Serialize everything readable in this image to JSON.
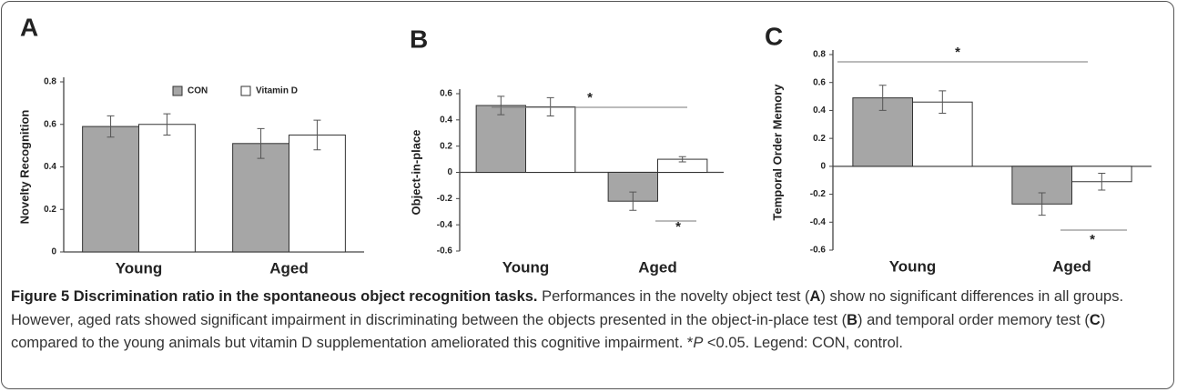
{
  "chart_data": [
    {
      "type": "bar",
      "panel": "A",
      "ylabel": "Novelty Recognition",
      "categories": [
        "Young",
        "Aged"
      ],
      "series": [
        {
          "name": "CON",
          "color": "#a6a6a6",
          "values": [
            0.59,
            0.51
          ],
          "errors": [
            0.05,
            0.07
          ]
        },
        {
          "name": "Vitamin D",
          "color": "#ffffff",
          "values": [
            0.6,
            0.55
          ],
          "errors": [
            0.05,
            0.07
          ]
        }
      ],
      "ylim": [
        0,
        0.8
      ],
      "yticks": [
        0,
        0.2,
        0.4,
        0.6,
        0.8
      ],
      "legend": "top"
    },
    {
      "type": "bar",
      "panel": "B",
      "ylabel": "Object-in-place",
      "categories": [
        "Young",
        "Aged"
      ],
      "series": [
        {
          "color": "#a6a6a6",
          "values": [
            0.51,
            -0.22
          ],
          "errors": [
            0.07,
            0.07
          ]
        },
        {
          "color": "#ffffff",
          "values": [
            0.5,
            0.1
          ],
          "errors": [
            0.07,
            0.02
          ]
        }
      ],
      "ylim": [
        -0.6,
        0.6
      ],
      "yticks": [
        -0.6,
        -0.4,
        -0.2,
        0,
        0.2,
        0.4,
        0.6
      ],
      "annotations": [
        "*",
        "*"
      ]
    },
    {
      "type": "bar",
      "panel": "C",
      "ylabel": "Temporal Order Memory",
      "categories": [
        "Young",
        "Aged"
      ],
      "series": [
        {
          "color": "#a6a6a6",
          "values": [
            0.49,
            -0.27
          ],
          "errors": [
            0.09,
            0.08
          ]
        },
        {
          "color": "#ffffff",
          "values": [
            0.46,
            -0.11
          ],
          "errors": [
            0.08,
            0.06
          ]
        }
      ],
      "ylim": [
        -0.6,
        0.8
      ],
      "yticks": [
        -0.6,
        -0.4,
        -0.2,
        0,
        0.2,
        0.4,
        0.6,
        0.8
      ],
      "annotations": [
        "*",
        "*"
      ]
    }
  ],
  "caption": {
    "title": "Figure 5 Discrimination ratio in the spontaneous object recognition tasks.",
    "parts": [
      "Performances in the novelty object test (",
      "A",
      ") show no significant differences in all groups. However, aged rats showed significant impairment in discriminating between the objects presented in the object-in-place test (",
      "B",
      ") and temporal order memory test (",
      "C",
      ") compared to the young animals but vitamin D supplementation ameliorated this cognitive impairment. *",
      "P",
      " <0.05. Legend: CON, control."
    ]
  }
}
